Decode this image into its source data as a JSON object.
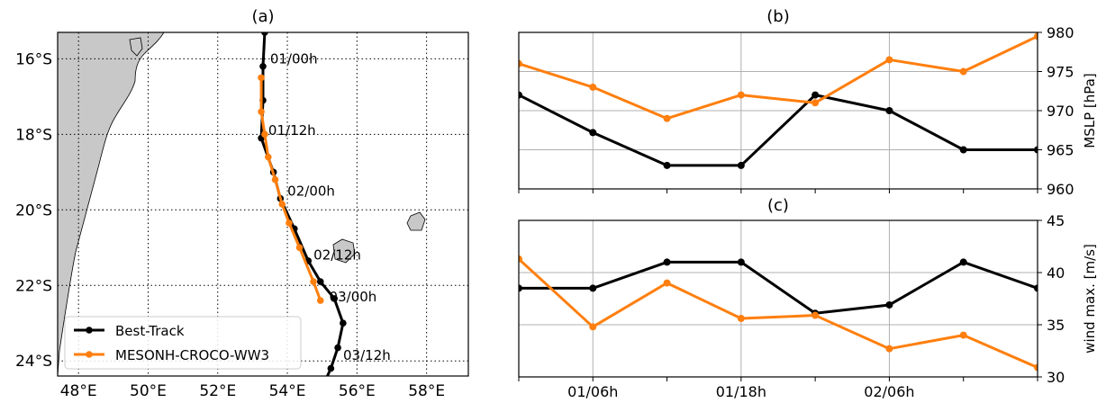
{
  "colors": {
    "best_track": "#000000",
    "model": "#ff7f0e",
    "land": "#c8c8c8",
    "grid": "#b0b0b0",
    "frame": "#000000"
  },
  "chart_data": [
    {
      "id": "a",
      "type": "map",
      "title": "(a)",
      "xlim": [
        47.4,
        59.2
      ],
      "ylim": [
        -24.4,
        -15.3
      ],
      "lon_ticks": [
        48,
        50,
        52,
        54,
        56,
        58
      ],
      "lon_tick_labels": [
        "48°E",
        "50°E",
        "52°E",
        "54°E",
        "56°E",
        "58°E"
      ],
      "lat_ticks": [
        -16,
        -18,
        -20,
        -22,
        -24
      ],
      "lat_tick_labels": [
        "16°S",
        "18°S",
        "20°S",
        "22°S",
        "24°S"
      ],
      "grid": true,
      "legend": {
        "position": "lower-left",
        "entries": [
          "Best-Track",
          "MESONH-CROCO-WW3"
        ]
      },
      "series": [
        {
          "name": "Best-Track",
          "points": [
            [
              53.35,
              -15.3
            ],
            [
              53.3,
              -16.2
            ],
            [
              53.3,
              -17.1
            ],
            [
              53.25,
              -18.1
            ],
            [
              53.6,
              -19.0
            ],
            [
              53.8,
              -19.7
            ],
            [
              54.2,
              -20.5
            ],
            [
              54.6,
              -21.35
            ],
            [
              54.95,
              -21.9
            ],
            [
              55.35,
              -22.35
            ],
            [
              55.6,
              -23.0
            ],
            [
              55.45,
              -23.65
            ],
            [
              55.25,
              -24.2
            ],
            [
              55.1,
              -24.5
            ]
          ]
        },
        {
          "name": "MESONH-CROCO-WW3",
          "points": [
            [
              53.25,
              -16.5
            ],
            [
              53.25,
              -17.4
            ],
            [
              53.35,
              -18.0
            ],
            [
              53.45,
              -18.6
            ],
            [
              53.65,
              -19.2
            ],
            [
              53.85,
              -19.85
            ],
            [
              54.05,
              -20.35
            ],
            [
              54.35,
              -21.0
            ],
            [
              54.75,
              -21.9
            ],
            [
              54.95,
              -22.4
            ]
          ]
        }
      ],
      "annotations": [
        {
          "text": "01/00h",
          "lon": 53.4,
          "lat": -16.0
        },
        {
          "text": "01/12h",
          "lon": 53.35,
          "lat": -17.9
        },
        {
          "text": "02/00h",
          "lon": 53.9,
          "lat": -19.5
        },
        {
          "text": "02/12h",
          "lon": 54.65,
          "lat": -21.2
        },
        {
          "text": "03/00h",
          "lon": 55.1,
          "lat": -22.3
        },
        {
          "text": "03/12h",
          "lon": 55.5,
          "lat": -23.85
        }
      ]
    },
    {
      "id": "b",
      "type": "line",
      "title": "(b)",
      "ylabel": "MSLP [hPa]",
      "ylim": [
        960,
        980
      ],
      "yticks": [
        960,
        965,
        970,
        975,
        980
      ],
      "x_hours": [
        0,
        6,
        12,
        18,
        24,
        30,
        36,
        42
      ],
      "xlim": [
        0,
        42
      ],
      "xticks": [
        6,
        18,
        30
      ],
      "xtick_labels": [
        "01/06h",
        "01/18h",
        "02/06h"
      ],
      "grid": true,
      "series": [
        {
          "name": "Best-Track",
          "values": [
            972,
            967.2,
            963,
            963,
            972,
            970,
            965,
            965
          ]
        },
        {
          "name": "MESONH-CROCO-WW3",
          "values": [
            976,
            973,
            969,
            972,
            971,
            976.5,
            975,
            979.5
          ]
        }
      ]
    },
    {
      "id": "c",
      "type": "line",
      "title": "(c)",
      "ylabel": "wind max. [m/s]",
      "ylim": [
        30,
        45
      ],
      "yticks": [
        30,
        35,
        40,
        45
      ],
      "x_hours": [
        0,
        6,
        12,
        18,
        24,
        30,
        36,
        42
      ],
      "xlim": [
        0,
        42
      ],
      "xticks": [
        6,
        18,
        30
      ],
      "xtick_labels": [
        "01/06h",
        "01/18h",
        "02/06h"
      ],
      "grid": true,
      "series": [
        {
          "name": "Best-Track",
          "values": [
            38.5,
            38.5,
            41,
            41,
            36.1,
            36.9,
            41,
            38.5
          ]
        },
        {
          "name": "MESONH-CROCO-WW3",
          "values": [
            41.3,
            34.8,
            39,
            35.6,
            35.9,
            32.7,
            34,
            30.9
          ]
        }
      ]
    }
  ]
}
